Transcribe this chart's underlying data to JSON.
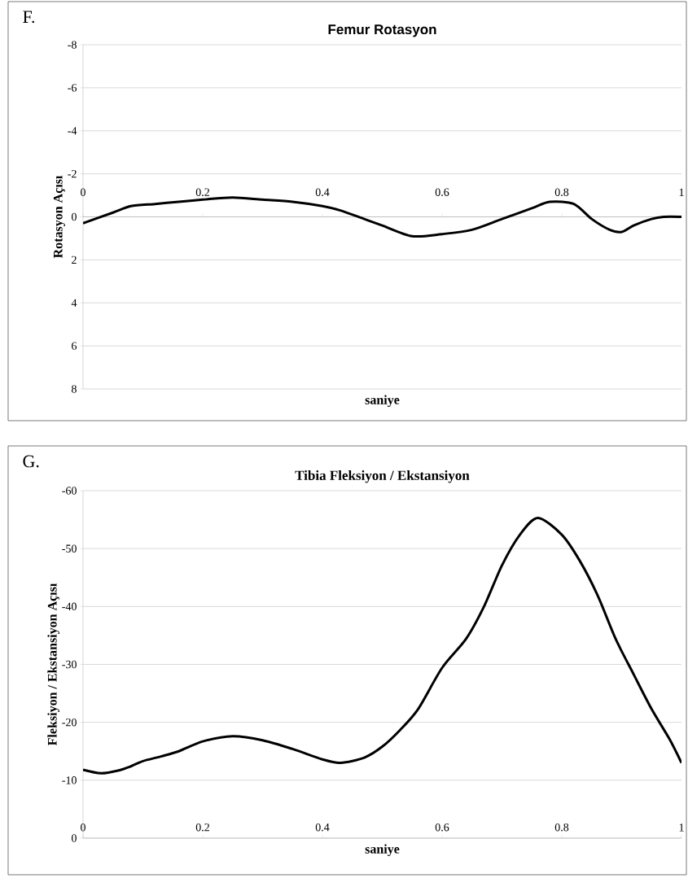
{
  "chart_data": [
    {
      "type": "line",
      "title": "Femur Rotasyon",
      "xlabel": "saniye",
      "ylabel": "Rotasyon Açısı",
      "annotations": [
        "F."
      ],
      "x": [
        0,
        0.05,
        0.08,
        0.12,
        0.16,
        0.2,
        0.25,
        0.3,
        0.35,
        0.4,
        0.43,
        0.47,
        0.5,
        0.55,
        0.6,
        0.65,
        0.7,
        0.75,
        0.78,
        0.82,
        0.85,
        0.88,
        0.9,
        0.92,
        0.95,
        0.97,
        1
      ],
      "series": [
        {
          "color": "#000000",
          "values": [
            0.3,
            -0.2,
            -0.5,
            -0.6,
            -0.7,
            -0.8,
            -0.9,
            -0.8,
            -0.7,
            -0.5,
            -0.3,
            0.1,
            0.4,
            0.9,
            0.8,
            0.6,
            0.1,
            -0.4,
            -0.7,
            -0.6,
            0.1,
            0.6,
            0.7,
            0.4,
            0.1,
            0.0,
            0.0
          ]
        }
      ],
      "xlim": [
        0,
        1
      ],
      "ylim": [
        8,
        -8
      ],
      "xticks": [
        0,
        0.2,
        0.4,
        0.6,
        0.8,
        1
      ],
      "yticks": [
        -8,
        -6,
        -4,
        -2,
        0,
        2,
        4,
        6,
        8
      ],
      "grid": "y",
      "line_style": "solid",
      "marker": "none"
    },
    {
      "type": "line",
      "title": "Tibia Fleksiyon / Ekstansiyon",
      "xlabel": "saniye",
      "ylabel": "Fleksiyon / Ekstansiyon Açısı",
      "annotations": [
        "G."
      ],
      "x": [
        0,
        0.03,
        0.06,
        0.08,
        0.1,
        0.13,
        0.16,
        0.2,
        0.25,
        0.3,
        0.35,
        0.4,
        0.43,
        0.47,
        0.5,
        0.53,
        0.56,
        0.6,
        0.64,
        0.67,
        0.7,
        0.73,
        0.76,
        0.8,
        0.83,
        0.86,
        0.89,
        0.92,
        0.95,
        0.98,
        1
      ],
      "series": [
        {
          "color": "#000000",
          "values": [
            -11.8,
            -11.2,
            -11.7,
            -12.4,
            -13.3,
            -14.1,
            -15,
            -16.7,
            -17.6,
            -16.9,
            -15.4,
            -13.6,
            -13,
            -13.9,
            -15.8,
            -18.7,
            -22.3,
            -29.4,
            -34.4,
            -40,
            -47.1,
            -52.4,
            -55.3,
            -52.4,
            -47.9,
            -41.9,
            -34.4,
            -28.3,
            -22.3,
            -17.1,
            -13
          ]
        }
      ],
      "xlim": [
        0,
        1
      ],
      "ylim": [
        0,
        -60
      ],
      "xticks": [
        0,
        0.2,
        0.4,
        0.6,
        0.8,
        1
      ],
      "yticks": [
        -60,
        -50,
        -40,
        -30,
        -20,
        -10,
        0
      ],
      "grid": "y",
      "line_style": "solid",
      "marker": "none"
    }
  ]
}
